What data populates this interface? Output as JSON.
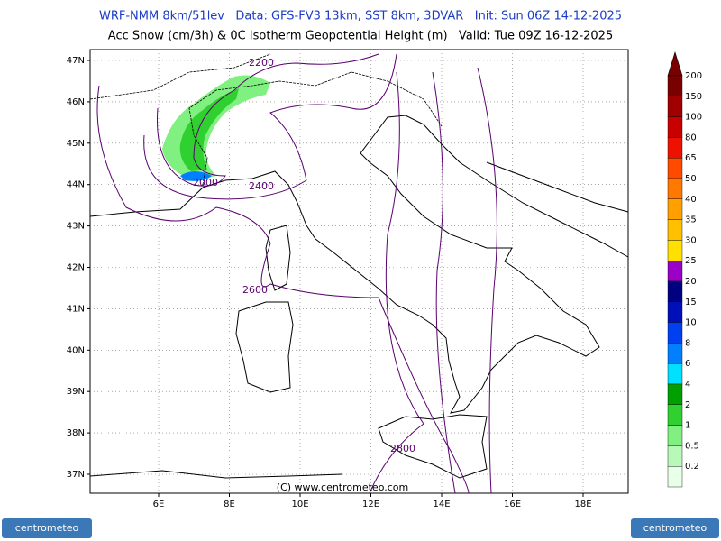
{
  "header": {
    "line1": "WRF-NMM 8km/51lev   Data: GFS-FV3 13km, SST 8km, 3DVAR   Init: Sun 06Z 14-12-2025",
    "line2": "Acc Snow (cm/3h) & 0C Isotherm Geopotential Height (m)   Valid: Tue 09Z 16-12-2025"
  },
  "map": {
    "lat_labels": [
      "47N",
      "46N",
      "45N",
      "44N",
      "43N",
      "42N",
      "41N",
      "40N",
      "39N",
      "38N",
      "37N"
    ],
    "lon_labels": [
      "6E",
      "8E",
      "10E",
      "12E",
      "14E",
      "16E",
      "18E"
    ],
    "contour_labels": [
      "2200",
      "2000",
      "2400",
      "2600",
      "2800"
    ],
    "copyright": "(C) www.centrometeo.com"
  },
  "colorbar": {
    "items": [
      {
        "label": "200",
        "color": "#7a0000"
      },
      {
        "label": "150",
        "color": "#a00000"
      },
      {
        "label": "100",
        "color": "#c80000"
      },
      {
        "label": "80",
        "color": "#ee1000"
      },
      {
        "label": "65",
        "color": "#ff4a00"
      },
      {
        "label": "50",
        "color": "#ff7800"
      },
      {
        "label": "40",
        "color": "#ffa000"
      },
      {
        "label": "35",
        "color": "#ffc000"
      },
      {
        "label": "30",
        "color": "#ffe000"
      },
      {
        "label": "25",
        "color": "#9a00c8"
      },
      {
        "label": "20",
        "color": "#000080"
      },
      {
        "label": "15",
        "color": "#0010b8"
      },
      {
        "label": "10",
        "color": "#0040f0"
      },
      {
        "label": "8",
        "color": "#0080ff"
      },
      {
        "label": "6",
        "color": "#00e0ff"
      },
      {
        "label": "4",
        "color": "#00a000"
      },
      {
        "label": "2",
        "color": "#30d030"
      },
      {
        "label": "1",
        "color": "#80f080"
      },
      {
        "label": "0.5",
        "color": "#b8f8b8"
      },
      {
        "label": "0.2",
        "color": "#e8ffe8"
      }
    ]
  },
  "logo": {
    "text": "centrometeo"
  }
}
